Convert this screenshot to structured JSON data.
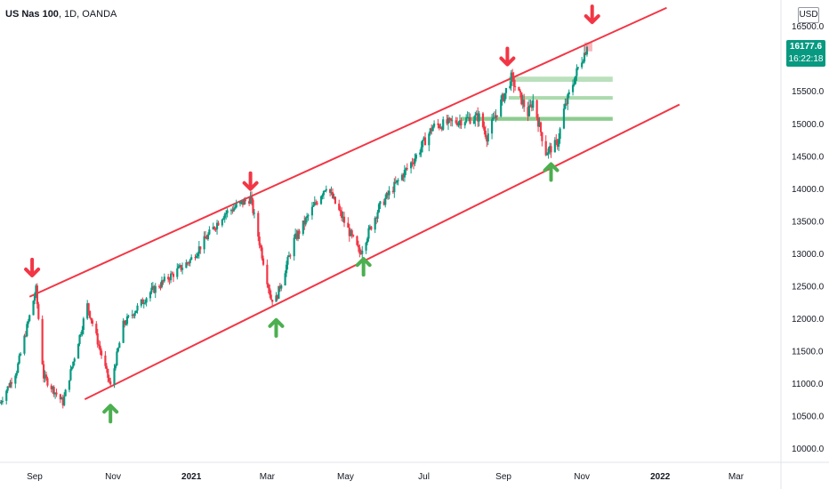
{
  "header": {
    "symbol": "US Nas 100",
    "interval": "1D",
    "source": "OANDA",
    "currency": "USD"
  },
  "last_price": {
    "price": "16177.6",
    "countdown": "16:22:18",
    "color": "#089981"
  },
  "colors": {
    "up": "#089981",
    "down": "#f23645",
    "channel": "#f23645",
    "arrow_up": "#4caf50",
    "arrow_down": "#f23645",
    "zone": "#66bb6a"
  },
  "chart_data": {
    "type": "candlestick",
    "title": "",
    "xlabel": "",
    "ylabel": "",
    "ylim": [
      9780,
      16900
    ],
    "x_range": [
      "2020-08-05",
      "2022-04-05"
    ],
    "y_ticks": [
      "10000.0",
      "10500.0",
      "11000.0",
      "11500.0",
      "12000.0",
      "12500.0",
      "13000.0",
      "13500.0",
      "14000.0",
      "14500.0",
      "15000.0",
      "15500.0",
      "16000.0",
      "16500.0"
    ],
    "x_ticks": [
      {
        "date": "2020-09-01",
        "label": "Sep",
        "bold": false
      },
      {
        "date": "2020-11-01",
        "label": "Nov",
        "bold": false
      },
      {
        "date": "2021-01-01",
        "label": "2021",
        "bold": true
      },
      {
        "date": "2021-03-01",
        "label": "Mar",
        "bold": false
      },
      {
        "date": "2021-05-01",
        "label": "May",
        "bold": false
      },
      {
        "date": "2021-07-01",
        "label": "Jul",
        "bold": false
      },
      {
        "date": "2021-09-01",
        "label": "Sep",
        "bold": false
      },
      {
        "date": "2021-11-01",
        "label": "Nov",
        "bold": false
      },
      {
        "date": "2022-01-01",
        "label": "2022",
        "bold": true
      },
      {
        "date": "2022-03-01",
        "label": "Mar",
        "bold": false
      }
    ],
    "price_path": [
      [
        "2020-08-05",
        10700
      ],
      [
        "2020-08-18",
        11200
      ],
      [
        "2020-09-02",
        12440
      ],
      [
        "2020-09-08",
        11100
      ],
      [
        "2020-09-23",
        10700
      ],
      [
        "2020-10-12",
        12200
      ],
      [
        "2020-10-30",
        10950
      ],
      [
        "2020-11-09",
        11900
      ],
      [
        "2020-11-30",
        12400
      ],
      [
        "2020-12-31",
        12890
      ],
      [
        "2021-01-26",
        13600
      ],
      [
        "2021-02-16",
        13850
      ],
      [
        "2021-03-04",
        12300
      ],
      [
        "2021-03-08",
        12300
      ],
      [
        "2021-03-22",
        13200
      ],
      [
        "2021-04-16",
        14050
      ],
      [
        "2021-05-12",
        13000
      ],
      [
        "2021-05-27",
        13700
      ],
      [
        "2021-06-25",
        14500
      ],
      [
        "2021-07-08",
        14950
      ],
      [
        "2021-07-30",
        15050
      ],
      [
        "2021-08-13",
        15100
      ],
      [
        "2021-08-19",
        14800
      ],
      [
        "2021-09-07",
        15700
      ],
      [
        "2021-09-20",
        15150
      ],
      [
        "2021-09-24",
        15350
      ],
      [
        "2021-10-04",
        14550
      ],
      [
        "2021-10-13",
        14700
      ],
      [
        "2021-10-18",
        15200
      ],
      [
        "2021-10-29",
        15850
      ],
      [
        "2021-11-05",
        16177.6
      ]
    ],
    "channel_lines": [
      {
        "name": "upper",
        "from": [
          "2020-08-28",
          12330
        ],
        "to": [
          "2022-01-06",
          16780
        ]
      },
      {
        "name": "lower",
        "from": [
          "2020-10-10",
          10750
        ],
        "to": [
          "2022-01-16",
          15290
        ]
      }
    ],
    "zones": [
      {
        "from": "2021-09-05",
        "to": "2021-11-25",
        "low": 15640,
        "high": 15720,
        "opacity": 0.45
      },
      {
        "from": "2021-09-05",
        "to": "2021-11-25",
        "low": 15370,
        "high": 15420,
        "opacity": 0.55
      },
      {
        "from": "2021-07-30",
        "to": "2021-11-25",
        "low": 15040,
        "high": 15100,
        "opacity": 0.75
      }
    ],
    "arrows": [
      {
        "dir": "down",
        "date": "2020-08-30",
        "price": 12780
      },
      {
        "dir": "down",
        "date": "2021-02-16",
        "price": 14110
      },
      {
        "dir": "down",
        "date": "2021-09-04",
        "price": 16030
      },
      {
        "dir": "down",
        "date": "2021-11-09",
        "price": 16680
      },
      {
        "dir": "up",
        "date": "2020-10-30",
        "price": 10530
      },
      {
        "dir": "up",
        "date": "2021-03-08",
        "price": 11850
      },
      {
        "dir": "up",
        "date": "2021-05-15",
        "price": 12790
      },
      {
        "dir": "up",
        "date": "2021-10-08",
        "price": 14250
      }
    ]
  }
}
